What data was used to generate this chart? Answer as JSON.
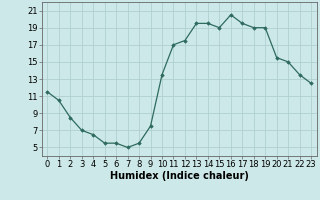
{
  "x": [
    0,
    1,
    2,
    3,
    4,
    5,
    6,
    7,
    8,
    9,
    10,
    11,
    12,
    13,
    14,
    15,
    16,
    17,
    18,
    19,
    20,
    21,
    22,
    23
  ],
  "y": [
    11.5,
    10.5,
    8.5,
    7.0,
    6.5,
    5.5,
    5.5,
    5.0,
    5.5,
    7.5,
    13.5,
    17.0,
    17.5,
    19.5,
    19.5,
    19.0,
    20.5,
    19.5,
    19.0,
    19.0,
    15.5,
    15.0,
    13.5,
    12.5
  ],
  "xlabel": "Humidex (Indice chaleur)",
  "ylim": [
    4,
    22
  ],
  "xlim": [
    -0.5,
    23.5
  ],
  "yticks": [
    5,
    7,
    9,
    11,
    13,
    15,
    17,
    19,
    21
  ],
  "xticks": [
    0,
    1,
    2,
    3,
    4,
    5,
    6,
    7,
    8,
    9,
    10,
    11,
    12,
    13,
    14,
    15,
    16,
    17,
    18,
    19,
    20,
    21,
    22,
    23
  ],
  "line_color": "#2e6b5e",
  "marker": "D",
  "marker_size": 1.8,
  "bg_color": "#cde8e8",
  "grid_color": "#b0d0d0",
  "axis_color": "#666666",
  "xlabel_fontsize": 7,
  "tick_fontsize": 6,
  "fig_width": 3.2,
  "fig_height": 2.0,
  "dpi": 100
}
